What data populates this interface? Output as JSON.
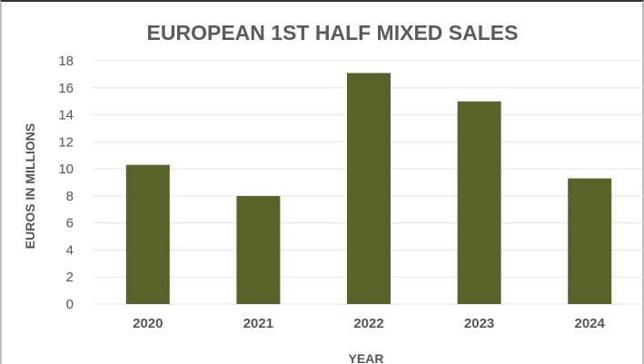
{
  "chart_data": {
    "type": "bar",
    "title": "EUROPEAN 1ST HALF MIXED SALES",
    "xlabel": "YEAR",
    "ylabel": "EUROS IN MILLIONS",
    "categories": [
      "2020",
      "2021",
      "2022",
      "2023",
      "2024"
    ],
    "values": [
      10.3,
      8.0,
      17.1,
      15.0,
      9.3
    ],
    "ylim": [
      0,
      18
    ],
    "yticks": [
      0,
      2,
      4,
      6,
      8,
      10,
      12,
      14,
      16,
      18
    ],
    "grid": true,
    "legend": "none",
    "bar_color": "#566329",
    "grid_color": "#e3e3e3"
  }
}
